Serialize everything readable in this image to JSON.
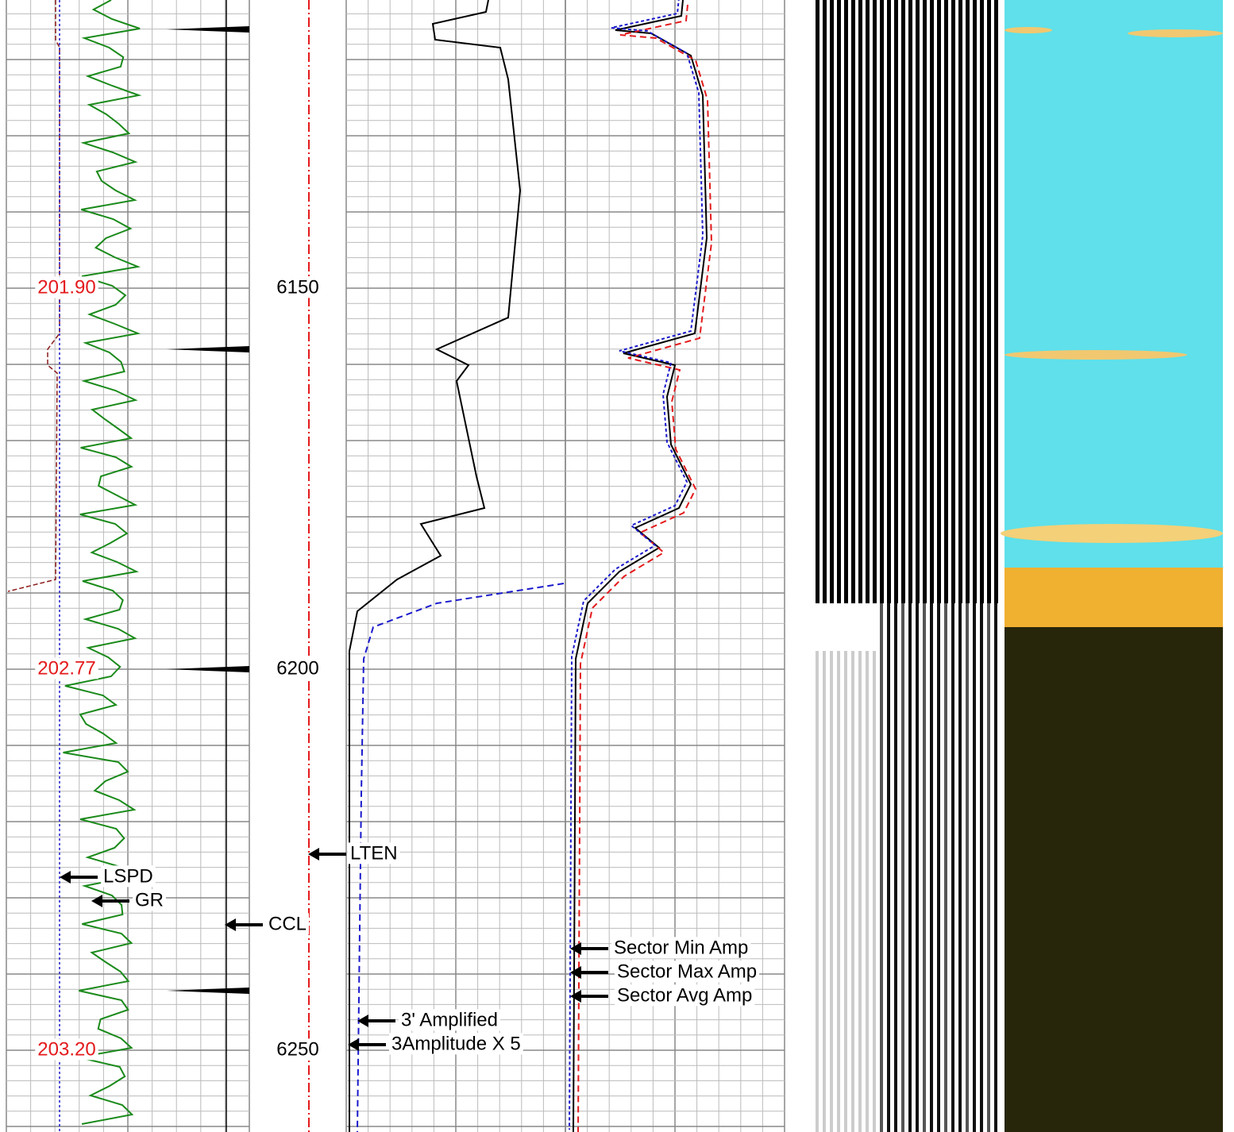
{
  "depth_labels": [
    "6150",
    "6200",
    "6250"
  ],
  "time_labels": [
    "201.90",
    "202.77",
    "203.20"
  ],
  "curve_labels": [
    "LTEN",
    "LSPD",
    "GR",
    "CCL",
    "Sector Min Amp",
    "Sector Max Amp",
    "Sector Avg Amp",
    "3' Amplified",
    "3Amplitude X 5"
  ]
}
